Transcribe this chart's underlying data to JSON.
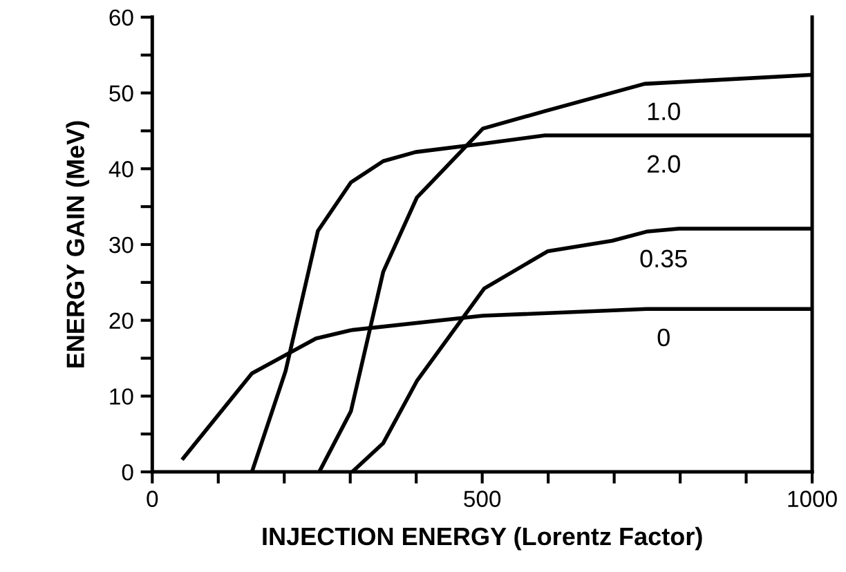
{
  "chart_data": {
    "type": "line",
    "xlabel": "INJECTION ENERGY (Lorentz Factor)",
    "ylabel": "ENERGY GAIN (MeV)",
    "xlim": [
      0,
      1000
    ],
    "xticks": [
      0,
      {
        "value": 100,
        "label": null
      },
      {
        "value": 200,
        "label": null
      },
      {
        "value": 300,
        "label": null
      },
      {
        "value": 400,
        "label": null
      },
      500,
      {
        "value": 600,
        "label": null
      },
      {
        "value": 700,
        "label": null
      },
      {
        "value": 800,
        "label": null
      },
      {
        "value": 900,
        "label": null
      },
      1000
    ],
    "ylim": [
      0,
      60
    ],
    "yticks": [
      0,
      {
        "value": 5,
        "label": null
      },
      10,
      {
        "value": 15,
        "label": null
      },
      20,
      {
        "value": 25,
        "label": null
      },
      30,
      {
        "value": 35,
        "label": null
      },
      40,
      {
        "value": 45,
        "label": null
      },
      50,
      {
        "value": 55,
        "label": null
      },
      60
    ],
    "grid": false,
    "marker": "none",
    "line_style": "solid",
    "series": [
      {
        "name": "0",
        "color": "#000000",
        "x": [
          47,
          151,
          248,
          301,
          501,
          749,
          1000
        ],
        "values": [
          1.8,
          13,
          17.6,
          18.7,
          20.6,
          21.5,
          21.5
        ]
      },
      {
        "name": "2.0",
        "color": "#000000",
        "x": [
          151,
          202,
          251,
          301,
          350,
          399,
          501,
          595,
          1000
        ],
        "values": [
          0,
          13.3,
          31.8,
          38.2,
          41,
          42.2,
          43.3,
          44.4,
          44.4
        ]
      },
      {
        "name": "1.0",
        "color": "#000000",
        "x": [
          253,
          301,
          350,
          401,
          501,
          595,
          746,
          1000
        ],
        "values": [
          0,
          8,
          26.4,
          36.2,
          45.3,
          47.6,
          51.2,
          52.4
        ]
      },
      {
        "name": "0.35",
        "color": "#000000",
        "x": [
          303,
          350,
          401,
          503,
          599,
          697,
          749,
          798,
          1000
        ],
        "values": [
          0,
          3.8,
          12,
          24.2,
          29.1,
          30.5,
          31.7,
          32.1,
          32.1
        ]
      }
    ]
  }
}
